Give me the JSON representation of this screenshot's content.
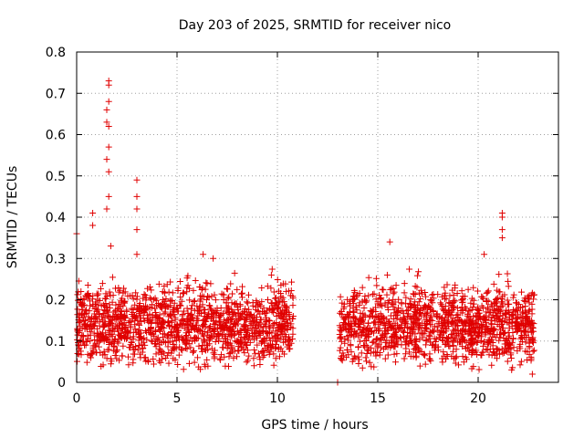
{
  "chart_data": {
    "type": "scatter",
    "title": "Day 203 of 2025, SRMTID for receiver nico",
    "xlabel": "GPS time / hours",
    "ylabel": "SRMTID / TECUs",
    "xlim": [
      0,
      24
    ],
    "ylim": [
      0,
      0.8
    ],
    "xticks": [
      0,
      5,
      10,
      15,
      20
    ],
    "yticks": [
      0,
      0.1,
      0.2,
      0.3,
      0.4,
      0.5,
      0.6,
      0.7,
      0.8
    ],
    "xtick_labels": [
      "0",
      "5",
      "10",
      "15",
      "20"
    ],
    "ytick_labels": [
      "0",
      "0.1",
      "0.2",
      "0.3",
      "0.4",
      "0.5",
      "0.6",
      "0.7",
      "0.8"
    ],
    "grid": true,
    "marker": "+",
    "color": "#e00000",
    "series": [
      {
        "name": "SRMTID",
        "segments": [
          {
            "x_start": 0.0,
            "x_end": 10.8,
            "typical_range": [
              0.05,
              0.3
            ],
            "median": 0.14
          },
          {
            "x_start": 13.1,
            "x_end": 22.8,
            "typical_range": [
              0.05,
              0.3
            ],
            "median": 0.14
          }
        ],
        "outliers": [
          {
            "x": 0.0,
            "y": 0.36
          },
          {
            "x": 0.8,
            "y": 0.41
          },
          {
            "x": 0.8,
            "y": 0.38
          },
          {
            "x": 1.5,
            "y": 0.42
          },
          {
            "x": 1.5,
            "y": 0.54
          },
          {
            "x": 1.5,
            "y": 0.63
          },
          {
            "x": 1.5,
            "y": 0.66
          },
          {
            "x": 1.6,
            "y": 0.73
          },
          {
            "x": 1.6,
            "y": 0.72
          },
          {
            "x": 1.6,
            "y": 0.68
          },
          {
            "x": 1.6,
            "y": 0.62
          },
          {
            "x": 1.6,
            "y": 0.57
          },
          {
            "x": 1.6,
            "y": 0.51
          },
          {
            "x": 1.6,
            "y": 0.45
          },
          {
            "x": 1.7,
            "y": 0.33
          },
          {
            "x": 3.0,
            "y": 0.49
          },
          {
            "x": 3.0,
            "y": 0.45
          },
          {
            "x": 3.0,
            "y": 0.42
          },
          {
            "x": 3.0,
            "y": 0.37
          },
          {
            "x": 3.0,
            "y": 0.31
          },
          {
            "x": 6.3,
            "y": 0.31
          },
          {
            "x": 6.8,
            "y": 0.3
          },
          {
            "x": 9.7,
            "y": 0.26
          },
          {
            "x": 13.0,
            "y": 0.0
          },
          {
            "x": 15.6,
            "y": 0.34
          },
          {
            "x": 20.3,
            "y": 0.31
          },
          {
            "x": 21.2,
            "y": 0.41
          },
          {
            "x": 21.2,
            "y": 0.4
          },
          {
            "x": 21.2,
            "y": 0.37
          },
          {
            "x": 21.2,
            "y": 0.35
          },
          {
            "x": 22.7,
            "y": 0.02
          }
        ]
      }
    ]
  }
}
